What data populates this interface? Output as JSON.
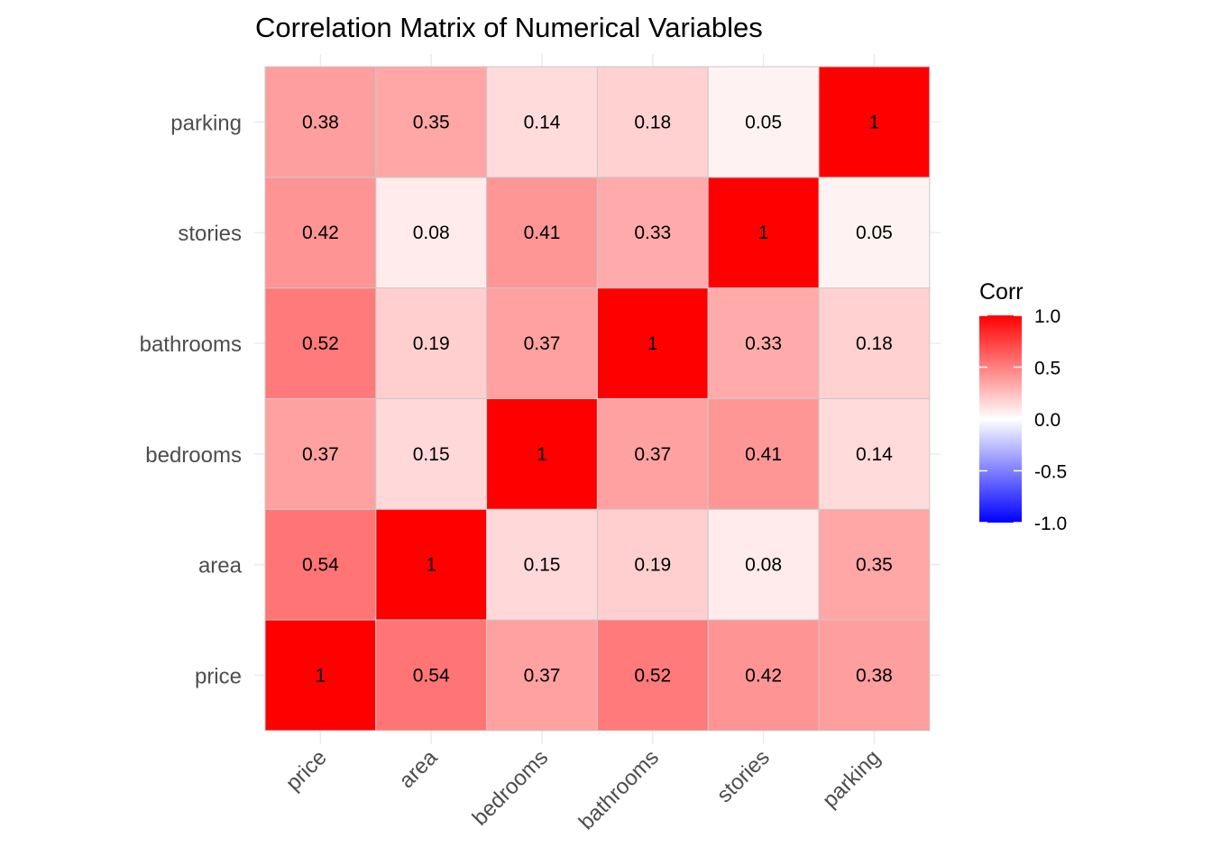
{
  "chart_data": {
    "type": "heatmap",
    "title": "Correlation Matrix of Numerical Variables",
    "x_categories": [
      "price",
      "area",
      "bedrooms",
      "bathrooms",
      "stories",
      "parking"
    ],
    "y_categories": [
      "price",
      "area",
      "bedrooms",
      "bathrooms",
      "stories",
      "parking"
    ],
    "values": [
      [
        1,
        0.54,
        0.37,
        0.52,
        0.42,
        0.38
      ],
      [
        0.54,
        1,
        0.15,
        0.19,
        0.08,
        0.35
      ],
      [
        0.37,
        0.15,
        1,
        0.37,
        0.41,
        0.14
      ],
      [
        0.52,
        0.19,
        0.37,
        1,
        0.33,
        0.18
      ],
      [
        0.42,
        0.08,
        0.41,
        0.33,
        1,
        0.05
      ],
      [
        0.38,
        0.35,
        0.14,
        0.18,
        0.05,
        1
      ]
    ],
    "labels": [
      [
        "1",
        "0.54",
        "0.37",
        "0.52",
        "0.42",
        "0.38"
      ],
      [
        "0.54",
        "1",
        "0.15",
        "0.19",
        "0.08",
        "0.35"
      ],
      [
        "0.37",
        "0.15",
        "1",
        "0.37",
        "0.41",
        "0.14"
      ],
      [
        "0.52",
        "0.19",
        "0.37",
        "1",
        "0.33",
        "0.18"
      ],
      [
        "0.42",
        "0.08",
        "0.41",
        "0.33",
        "1",
        "0.05"
      ],
      [
        "0.38",
        "0.35",
        "0.14",
        "0.18",
        "0.05",
        "1"
      ]
    ],
    "legend": {
      "title": "Corr",
      "position": "right",
      "range": [
        -1,
        1
      ],
      "ticks": [
        1.0,
        0.5,
        0.0,
        -0.5,
        -1.0
      ],
      "tick_labels": [
        "1.0",
        "0.5",
        "0.0",
        "-0.5",
        "-1.0"
      ]
    },
    "colors": {
      "low": "#0000ff",
      "mid": "#ffffff",
      "high": "#ff0000",
      "grid": "#ebebeb",
      "cell_border": "#c8c8c8"
    },
    "grid": true
  }
}
